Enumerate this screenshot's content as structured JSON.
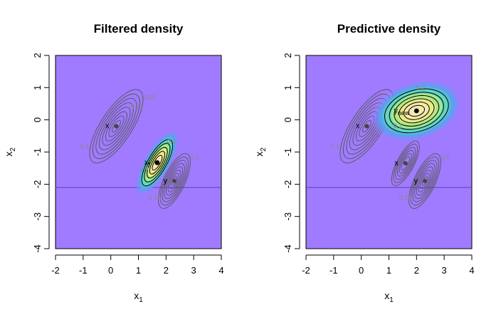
{
  "chart_data": [
    {
      "type": "contour",
      "title": "Filtered density",
      "xlabel": "x",
      "xlabel_sub": "1",
      "ylabel": "x",
      "ylabel_sub": "2",
      "xlim": [
        -2,
        4
      ],
      "ylim": [
        -4,
        2
      ],
      "xticks": [
        "-2",
        "-1",
        "0",
        "1",
        "2",
        "3",
        "4"
      ],
      "yticks": [
        "-4",
        "-3",
        "-2",
        "-1",
        "0",
        "1",
        "2"
      ],
      "background_color": "#a07bff",
      "hline_y": -2.1,
      "ellipses": [
        {
          "label": "x",
          "label_sub": "",
          "center": [
            0.2,
            -0.2
          ],
          "levels": [
            "0.05",
            "0.1",
            "0.15"
          ],
          "filled": false
        },
        {
          "label": "y",
          "label_sub": "",
          "center": [
            2.3,
            -1.9
          ],
          "levels": [
            "0.1",
            "0.15"
          ],
          "filled": false
        },
        {
          "label": "x",
          "label_sub": "f",
          "center": [
            1.68,
            -1.33
          ],
          "levels": [
            "0.2",
            "0.1"
          ],
          "filled": true
        }
      ]
    },
    {
      "type": "contour",
      "title": "Predictive density",
      "xlabel": "x",
      "xlabel_sub": "1",
      "ylabel": "x",
      "ylabel_sub": "2",
      "xlim": [
        -2,
        4
      ],
      "ylim": [
        -4,
        2
      ],
      "xticks": [
        "-2",
        "-1",
        "0",
        "1",
        "2",
        "3",
        "4"
      ],
      "yticks": [
        "-4",
        "-3",
        "-2",
        "-1",
        "0",
        "1",
        "2"
      ],
      "background_color": "#a07bff",
      "hline_y": -2.1,
      "ellipses": [
        {
          "label": "x",
          "label_sub": "",
          "center": [
            0.2,
            -0.2
          ],
          "levels": [
            "0.05",
            "0.1",
            "0.15"
          ],
          "filled": false
        },
        {
          "label": "x",
          "label_sub": "",
          "center": [
            1.6,
            -1.35
          ],
          "levels": [],
          "filled": false
        },
        {
          "label": "y",
          "label_sub": "",
          "center": [
            2.3,
            -1.9
          ],
          "levels": [
            "0.1",
            "0.15"
          ],
          "filled": false
        },
        {
          "label": "y",
          "label_sub": "new",
          "center": [
            2.0,
            0.28
          ],
          "levels": [
            "0.1",
            "0.2"
          ],
          "filled": true
        }
      ]
    }
  ]
}
